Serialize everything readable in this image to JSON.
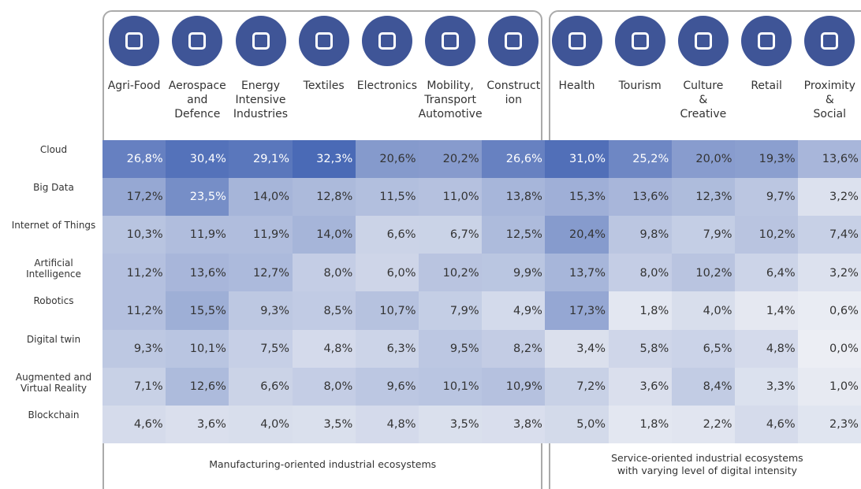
{
  "chart_data": {
    "type": "heatmap",
    "columns": [
      "Agri-Food",
      "Aerospace\nand\nDefence",
      "Energy\nIntensive\nIndustries",
      "Textiles",
      "Electronics",
      "Mobility,\nTransport\nAutomotive",
      "Construct\nion",
      "Health",
      "Tourism",
      "Culture\n&\nCreative",
      "Retail",
      "Proximity\n&\nSocial"
    ],
    "rows": [
      "Cloud",
      "Big Data",
      "Internet of Things",
      "Artificial\nIntelligence",
      "Robotics",
      "Digital twin",
      "Augmented and\nVirtual Reality",
      "Blockchain"
    ],
    "values": [
      [
        26.8,
        30.4,
        29.1,
        32.3,
        20.6,
        20.2,
        26.6,
        31.0,
        25.2,
        20.0,
        19.3,
        13.6
      ],
      [
        17.2,
        23.5,
        14.0,
        12.8,
        11.5,
        11.0,
        13.8,
        15.3,
        13.6,
        12.3,
        9.7,
        3.2
      ],
      [
        10.3,
        11.9,
        11.9,
        14.0,
        6.6,
        6.7,
        12.5,
        20.4,
        9.8,
        7.9,
        10.2,
        7.4
      ],
      [
        11.2,
        13.6,
        12.7,
        8.0,
        6.0,
        10.2,
        9.9,
        13.7,
        8.0,
        10.2,
        6.4,
        3.2
      ],
      [
        11.2,
        15.5,
        9.3,
        8.5,
        10.7,
        7.9,
        4.9,
        17.3,
        1.8,
        4.0,
        1.4,
        0.6
      ],
      [
        9.3,
        10.1,
        7.5,
        4.8,
        6.3,
        9.5,
        8.2,
        3.4,
        5.8,
        6.5,
        4.8,
        0.0
      ],
      [
        7.1,
        12.6,
        6.6,
        8.0,
        9.6,
        10.1,
        10.9,
        7.2,
        3.6,
        8.4,
        3.3,
        1.0
      ],
      [
        4.6,
        3.6,
        4.0,
        3.5,
        4.8,
        3.5,
        3.8,
        5.0,
        1.8,
        2.2,
        4.6,
        2.3
      ]
    ],
    "value_labels": [
      [
        "26,8%",
        "30,4%",
        "29,1%",
        "32,3%",
        "20,6%",
        "20,2%",
        "26,6%",
        "31,0%",
        "25,2%",
        "20,0%",
        "19,3%",
        "13,6%"
      ],
      [
        "17,2%",
        "23,5%",
        "14,0%",
        "12,8%",
        "11,5%",
        "11,0%",
        "13,8%",
        "15,3%",
        "13,6%",
        "12,3%",
        "9,7%",
        "3,2%"
      ],
      [
        "10,3%",
        "11,9%",
        "11,9%",
        "14,0%",
        "6,6%",
        "6,7%",
        "12,5%",
        "20,4%",
        "9,8%",
        "7,9%",
        "10,2%",
        "7,4%"
      ],
      [
        "11,2%",
        "13,6%",
        "12,7%",
        "8,0%",
        "6,0%",
        "10,2%",
        "9,9%",
        "13,7%",
        "8,0%",
        "10,2%",
        "6,4%",
        "3,2%"
      ],
      [
        "11,2%",
        "15,5%",
        "9,3%",
        "8,5%",
        "10,7%",
        "7,9%",
        "4,9%",
        "17,3%",
        "1,8%",
        "4,0%",
        "1,4%",
        "0,6%"
      ],
      [
        "9,3%",
        "10,1%",
        "7,5%",
        "4,8%",
        "6,3%",
        "9,5%",
        "8,2%",
        "3,4%",
        "5,8%",
        "6,5%",
        "4,8%",
        "0,0%"
      ],
      [
        "7,1%",
        "12,6%",
        "6,6%",
        "8,0%",
        "9,6%",
        "10,1%",
        "10,9%",
        "7,2%",
        "3,6%",
        "8,4%",
        "3,3%",
        "1,0%"
      ],
      [
        "4,6%",
        "3,6%",
        "4,0%",
        "3,5%",
        "4,8%",
        "3,5%",
        "3,8%",
        "5,0%",
        "1,8%",
        "2,2%",
        "4,6%",
        "2,3%"
      ]
    ],
    "groups": [
      {
        "label": "Manufacturing-oriented industrial ecosystems",
        "count": 7
      },
      {
        "label": "Service-oriented industrial ecosystems\nwith varying level of digital intensity",
        "count": 5
      }
    ],
    "color_low": "#eceef4",
    "color_high": "#4a6ab6",
    "icon_color": "#3f5597"
  }
}
